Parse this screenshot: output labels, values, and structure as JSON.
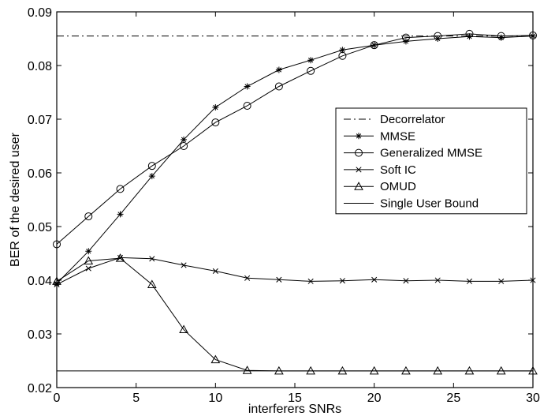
{
  "chart_data": {
    "type": "line",
    "title": "",
    "xlabel": "interferers  SNRs",
    "ylabel": "BER of the desired user",
    "xlim": [
      0,
      30
    ],
    "ylim": [
      0.02,
      0.09
    ],
    "xticks": [
      0,
      5,
      10,
      15,
      20,
      25,
      30
    ],
    "yticks": [
      0.02,
      0.03,
      0.04,
      0.05,
      0.06,
      0.07,
      0.08,
      0.09
    ],
    "xtick_labels": [
      "0",
      "5",
      "10",
      "15",
      "20",
      "25",
      "30"
    ],
    "ytick_labels": [
      "0.02",
      "0.03",
      "0.04",
      "0.05",
      "0.06",
      "0.07",
      "0.08",
      "0.09"
    ],
    "grid": false,
    "legend_position": "center-right",
    "series": [
      {
        "name": "Decorrelator",
        "line_style": "dashdot",
        "marker": "none",
        "x": [
          0,
          30
        ],
        "y": [
          0.0855,
          0.0855
        ]
      },
      {
        "name": "MMSE",
        "line_style": "solid",
        "marker": "asterisk",
        "x": [
          0,
          2,
          4,
          6,
          8,
          10,
          12,
          14,
          16,
          18,
          20,
          22,
          24,
          26,
          28,
          30
        ],
        "y": [
          0.0394,
          0.0454,
          0.0523,
          0.0594,
          0.0662,
          0.0722,
          0.0761,
          0.0792,
          0.081,
          0.0829,
          0.0838,
          0.0845,
          0.085,
          0.0854,
          0.0852,
          0.0855
        ]
      },
      {
        "name": "Generalized MMSE",
        "line_style": "solid",
        "marker": "circle",
        "x": [
          0,
          2,
          4,
          6,
          8,
          10,
          12,
          14,
          16,
          18,
          20,
          22,
          24,
          26,
          28,
          30
        ],
        "y": [
          0.0467,
          0.0519,
          0.057,
          0.0613,
          0.065,
          0.0694,
          0.0725,
          0.0761,
          0.079,
          0.0818,
          0.0838,
          0.0852,
          0.0855,
          0.0859,
          0.0855,
          0.0856
        ]
      },
      {
        "name": "Soft IC",
        "line_style": "solid",
        "marker": "x",
        "x": [
          0,
          2,
          4,
          6,
          8,
          10,
          12,
          14,
          16,
          18,
          20,
          22,
          24,
          26,
          28,
          30
        ],
        "y": [
          0.0392,
          0.0422,
          0.0442,
          0.044,
          0.0428,
          0.0417,
          0.0404,
          0.0401,
          0.0398,
          0.0399,
          0.0401,
          0.0399,
          0.04,
          0.0398,
          0.0398,
          0.04
        ]
      },
      {
        "name": "OMUD",
        "line_style": "solid",
        "marker": "triangle",
        "x": [
          0,
          2,
          4,
          6,
          8,
          10,
          12,
          14,
          16,
          18,
          20,
          22,
          24,
          26,
          28,
          30
        ],
        "y": [
          0.0398,
          0.0436,
          0.0441,
          0.0392,
          0.0308,
          0.0252,
          0.0232,
          0.0231,
          0.0231,
          0.0231,
          0.0231,
          0.0231,
          0.0231,
          0.0231,
          0.0231,
          0.0231
        ]
      },
      {
        "name": "Single User Bound",
        "line_style": "solid",
        "marker": "none",
        "x": [
          0,
          30
        ],
        "y": [
          0.0231,
          0.0231
        ]
      }
    ]
  }
}
